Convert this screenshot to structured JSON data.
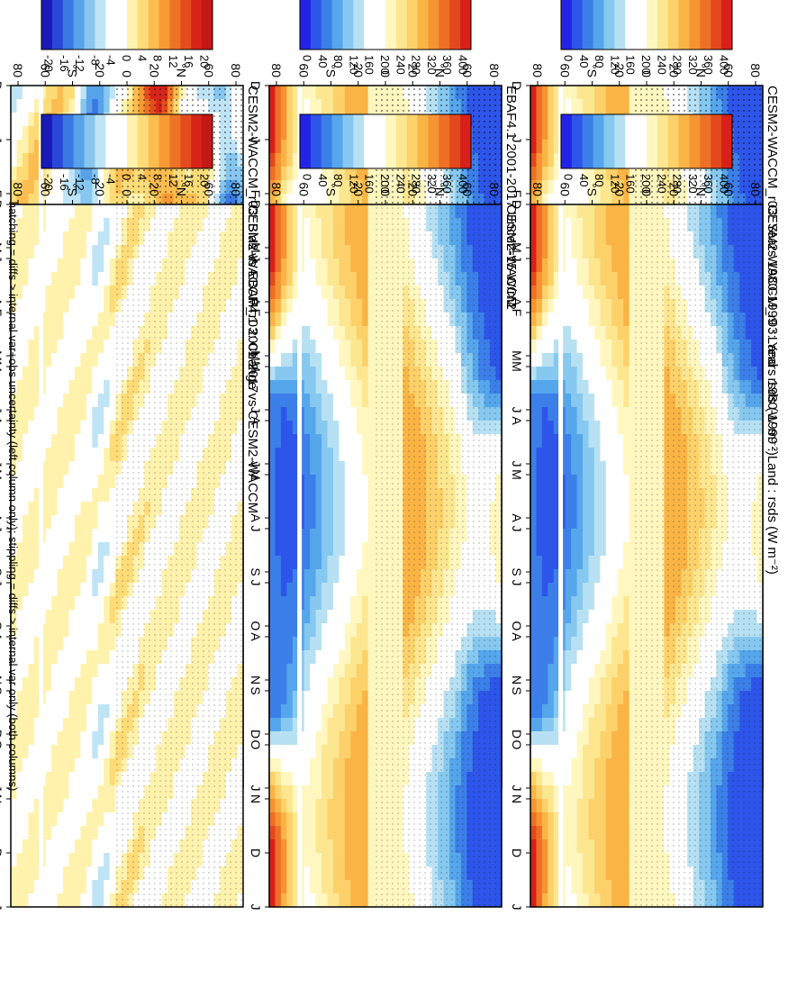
{
  "footnote": "hatching = diffs > internal var+obs uncertainty (left column only); stippling = diffs > internal var only (both columns)",
  "months_axis": [
    "D",
    "J",
    "F",
    "M",
    "A",
    "M",
    "J",
    "J",
    "A",
    "S",
    "O",
    "N",
    "D",
    "J"
  ],
  "lat_axis": [
    "80",
    "60",
    "°N",
    "20",
    "0",
    "20",
    "°S",
    "60",
    "80"
  ],
  "colors": {
    "abs_scale": [
      "#2323e8",
      "#2e55ea",
      "#3c7fe8",
      "#56a6ec",
      "#86c8ef",
      "#b7e1f3",
      "#ffffff",
      "#ffffff",
      "#fff7bf",
      "#fde690",
      "#fcd169",
      "#f9b445",
      "#f59431",
      "#ee6f26",
      "#e4481d",
      "#d91f1a"
    ],
    "diff_scale": [
      "#1a1ab8",
      "#2a48d8",
      "#3a78e4",
      "#58a2ea",
      "#86c6ef",
      "#bfe4f6",
      "#ffffff",
      "#ffffff",
      "#fff2ad",
      "#fddc78",
      "#fbbd4f",
      "#f69a34",
      "#ef7326",
      "#e54b1e",
      "#d72419",
      "#c41717"
    ]
  },
  "chart_data": [
    {
      "type": "heatmap",
      "title": "CESM2-WACCM_r03: Years 1980-1999 : Land : rsds (W m⁻²)",
      "colorbar_ticks": [
        "400",
        "360",
        "320",
        "280",
        "240",
        "200",
        "160",
        "120",
        "80",
        "40",
        "0"
      ],
      "clim": [
        0,
        400
      ],
      "hatching": true,
      "stippling": true
    },
    {
      "type": "heatmap",
      "title": "EBAF4.1 2001-2017 Uncer=15 W/m2",
      "colorbar_ticks": [
        "400",
        "360",
        "320",
        "280",
        "240",
        "200",
        "160",
        "120",
        "80",
        "40",
        "0"
      ],
      "clim": [
        0,
        400
      ],
      "hatching": true,
      "stippling": true
    },
    {
      "type": "heatmap",
      "title": "CESM2-WACCM_r03: Bias vs EBAF4.1 2001-2017",
      "colorbar_ticks": [
        "20",
        "16",
        "12",
        "8",
        "4",
        "0",
        "-4",
        "-8",
        "-12",
        "-16",
        "-20"
      ],
      "clim": [
        -22,
        22
      ],
      "hatching": true,
      "stippling": true
    },
    {
      "type": "heatmap",
      "title": "CESM2-WACCM_r03: Years 1980-1999 : Land : rsds (W m⁻²)",
      "colorbar_ticks": [
        "400",
        "360",
        "320",
        "280",
        "240",
        "200",
        "160",
        "120",
        "80",
        "40",
        "0"
      ],
      "clim": [
        0,
        400
      ],
      "hatching": false,
      "stippling": true
    },
    {
      "type": "heatmap",
      "title": "CESM2-WACCM",
      "colorbar_ticks": [
        "400",
        "360",
        "320",
        "280",
        "240",
        "200",
        "160",
        "120",
        "80",
        "40",
        "0"
      ],
      "clim": [
        0,
        400
      ],
      "hatching": false,
      "stippling": true
    },
    {
      "type": "heatmap",
      "title": "CESM2-WACCM_r03: Change vs CESM2-WACCM",
      "colorbar_ticks": [
        "20",
        "16",
        "12",
        "8",
        "4",
        "0",
        "-4",
        "-8",
        "-12",
        "-16",
        "-20"
      ],
      "clim": [
        -22,
        22
      ],
      "hatching": false,
      "stippling": true
    }
  ]
}
